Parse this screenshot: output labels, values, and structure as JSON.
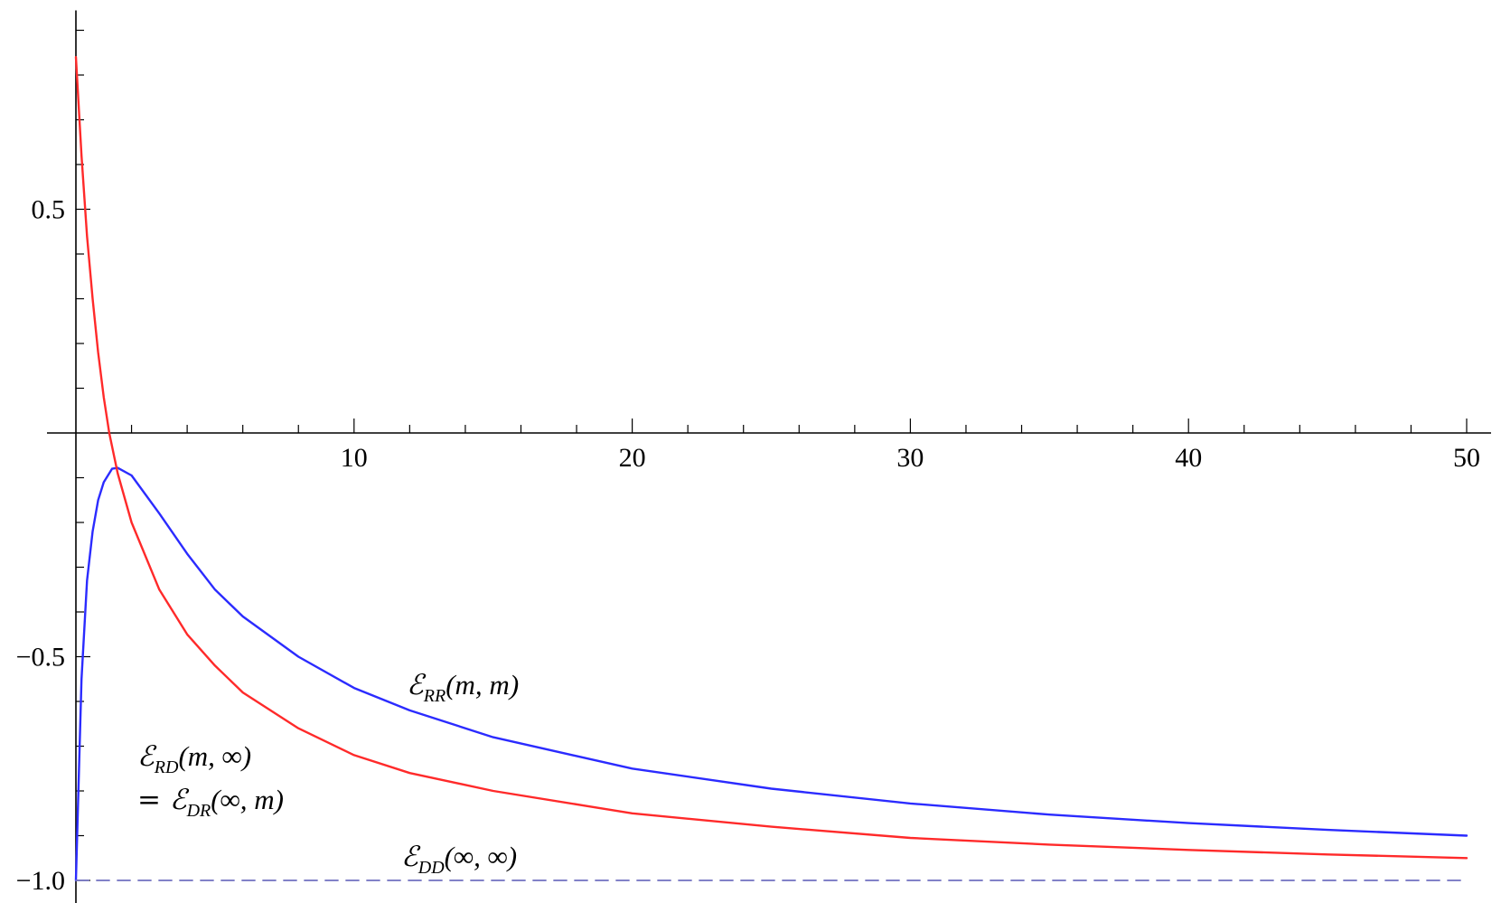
{
  "chart_data": {
    "type": "line",
    "title": "",
    "xlabel": "",
    "ylabel": "",
    "xlim": [
      0,
      50
    ],
    "ylim": [
      -1.05,
      0.9
    ],
    "x_ticks": [
      10,
      20,
      30,
      40,
      50
    ],
    "y_ticks": [
      -1.0,
      -0.5,
      0.5
    ],
    "x_tick_labels": [
      "10",
      "20",
      "30",
      "40",
      "50"
    ],
    "y_tick_labels": [
      "−1.0",
      "−0.5",
      "0.5"
    ],
    "grid": false,
    "series": [
      {
        "name": "E_RR(m,m)",
        "color": "#2b2bff",
        "style": "solid",
        "x": [
          0,
          0.2,
          0.4,
          0.6,
          0.8,
          1.0,
          1.3,
          1.5,
          2,
          3,
          4,
          5,
          6,
          8,
          10,
          12,
          15,
          20,
          25,
          30,
          35,
          40,
          45,
          50
        ],
        "y": [
          -1.0,
          -0.55,
          -0.33,
          -0.22,
          -0.15,
          -0.11,
          -0.08,
          -0.078,
          -0.095,
          -0.18,
          -0.27,
          -0.35,
          -0.41,
          -0.5,
          -0.57,
          -0.62,
          -0.68,
          -0.75,
          -0.795,
          -0.828,
          -0.853,
          -0.872,
          -0.887,
          -0.9
        ]
      },
      {
        "name": "E_RD(m,∞) = E_DR(∞,m)",
        "color": "#ff2a2a",
        "style": "solid",
        "x": [
          0,
          0.2,
          0.4,
          0.6,
          0.8,
          1.0,
          1.2,
          1.5,
          2,
          3,
          4,
          5,
          6,
          8,
          10,
          12,
          15,
          20,
          25,
          30,
          35,
          40,
          45,
          50
        ],
        "y": [
          0.84,
          0.62,
          0.44,
          0.3,
          0.18,
          0.08,
          0.0,
          -0.09,
          -0.2,
          -0.35,
          -0.45,
          -0.52,
          -0.58,
          -0.66,
          -0.72,
          -0.76,
          -0.8,
          -0.85,
          -0.88,
          -0.905,
          -0.92,
          -0.932,
          -0.942,
          -0.95
        ]
      },
      {
        "name": "E_DD(∞,∞)",
        "color": "#7070c0",
        "style": "dashed",
        "x": [
          0,
          50
        ],
        "y": [
          -1.0,
          -1.0
        ]
      }
    ],
    "annotations": [
      {
        "parts": [
          "ℰ",
          "RR",
          "(m, m)"
        ]
      },
      {
        "parts": [
          "ℰ",
          "RD",
          "(m, ∞)"
        ]
      },
      {
        "parts": [
          "= ℰ",
          "DR",
          "(∞, m)"
        ]
      },
      {
        "parts": [
          "ℰ",
          "DD",
          "(∞, ∞)"
        ]
      }
    ]
  }
}
